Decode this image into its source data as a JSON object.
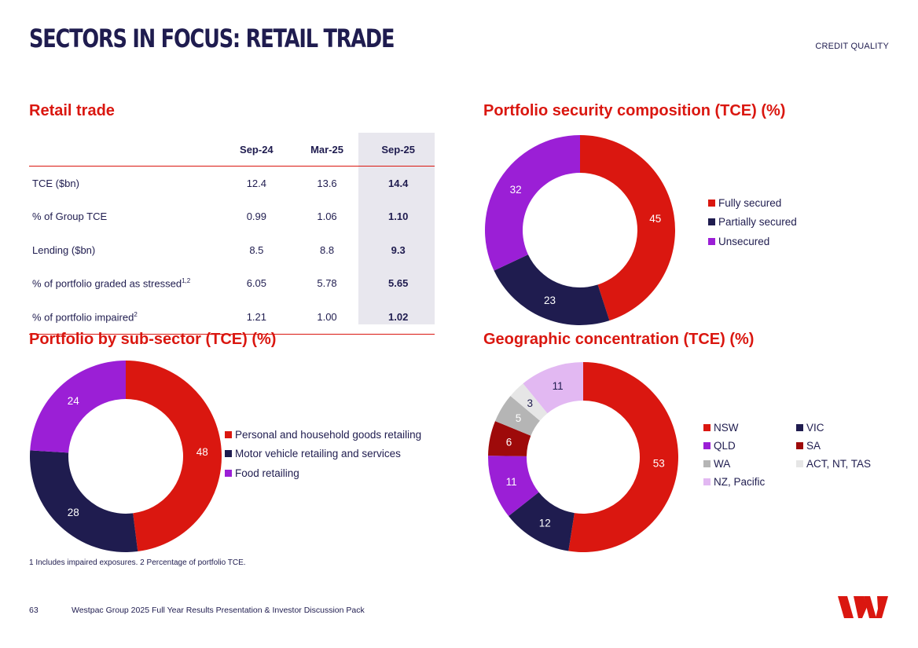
{
  "header": {
    "title": "SECTORS IN FOCUS: RETAIL TRADE",
    "section_label": "CREDIT QUALITY"
  },
  "table": {
    "title": "Retail trade",
    "columns": [
      "Sep-24",
      "Mar-25",
      "Sep-25"
    ],
    "rows": [
      {
        "label": "TCE ($bn)",
        "sup": "",
        "values": [
          "12.4",
          "13.6",
          "14.4"
        ]
      },
      {
        "label": "% of Group TCE",
        "sup": "",
        "values": [
          "0.99",
          "1.06",
          "1.10"
        ]
      },
      {
        "label": "Lending ($bn)",
        "sup": "",
        "values": [
          "8.5",
          "8.8",
          "9.3"
        ]
      },
      {
        "label": "% of portfolio graded as stressed",
        "sup": "1,2",
        "values": [
          "6.05",
          "5.78",
          "5.65"
        ]
      },
      {
        "label": "% of portfolio impaired",
        "sup": "2",
        "values": [
          "1.21",
          "1.00",
          "1.02"
        ]
      }
    ]
  },
  "chart_data": [
    {
      "type": "pie",
      "title": "Portfolio security composition (TCE) (%)",
      "categories": [
        "Fully secured",
        "Partially secured",
        "Unsecured"
      ],
      "values": [
        45,
        23,
        32
      ],
      "colors": [
        "#da1710",
        "#1f1c4f",
        "#9b1fd6"
      ],
      "label_colors": [
        "#ffffff",
        "#ffffff",
        "#ffffff"
      ],
      "legend_position": "right"
    },
    {
      "type": "pie",
      "title": "Portfolio by sub-sector (TCE) (%)",
      "categories": [
        "Personal and household goods retailing",
        "Motor vehicle retailing and services",
        "Food retailing"
      ],
      "values": [
        48,
        28,
        24
      ],
      "colors": [
        "#da1710",
        "#1f1c4f",
        "#9b1fd6"
      ],
      "label_colors": [
        "#ffffff",
        "#ffffff",
        "#ffffff"
      ],
      "legend_position": "right"
    },
    {
      "type": "pie",
      "title": "Geographic concentration (TCE) (%)",
      "categories": [
        "NSW",
        "VIC",
        "QLD",
        "SA",
        "WA",
        "ACT, NT, TAS",
        "NZ, Pacific"
      ],
      "values": [
        53,
        12,
        11,
        6,
        5,
        3,
        11
      ],
      "colors": [
        "#da1710",
        "#1f1c4f",
        "#9b1fd6",
        "#9e0a0a",
        "#b5b5b5",
        "#e6e6e6",
        "#e2b8f2"
      ],
      "label_colors": [
        "#ffffff",
        "#ffffff",
        "#ffffff",
        "#ffffff",
        "#ffffff",
        "#1f1c4f",
        "#1f1c4f"
      ],
      "legend_position": "right"
    }
  ],
  "footnote": "1 Includes impaired exposures. 2 Percentage of portfolio TCE.",
  "footer": {
    "page_number": "63",
    "text": "Westpac Group 2025 Full Year Results Presentation & Investor Discussion Pack"
  },
  "colors": {
    "brand_red": "#da1710",
    "navy": "#1f1c4f",
    "highlight": "#e8e7ee"
  }
}
